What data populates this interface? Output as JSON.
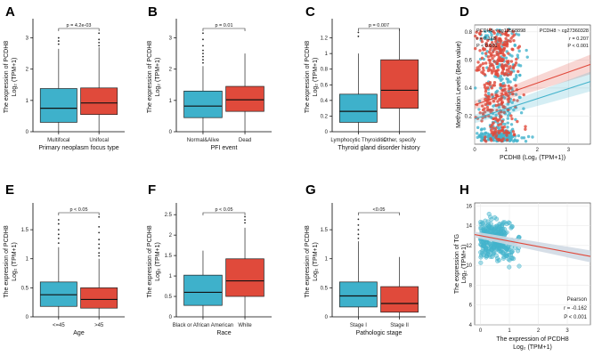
{
  "colors": {
    "blue": "#42b3cc",
    "red": "#e0483a",
    "blue_fill": "#3eb1cb",
    "red_fill": "#e04a3b",
    "band": "#cfd8e3"
  },
  "chart_data": [
    {
      "id": "A",
      "type": "box",
      "categories": [
        "Multifocal",
        "Unifocal"
      ],
      "xlabel": "Primary neoplasm focus type",
      "ylabel": "The expression of PCDH8",
      "ylabel2": "Log₂ (TPM+1)",
      "ylim": [
        0,
        3.5
      ],
      "yticks": [
        0,
        1,
        2,
        3
      ],
      "annotation": "p = 4.2e-03",
      "boxes": [
        {
          "q1": 0.3,
          "median": 0.75,
          "q3": 1.38,
          "low": 0.0,
          "high": 2.65,
          "outliers": [
            2.8,
            2.9,
            3.0
          ]
        },
        {
          "q1": 0.55,
          "median": 0.92,
          "q3": 1.4,
          "low": 0.0,
          "high": 2.7,
          "outliers": [
            2.75,
            2.85,
            2.95,
            3.15
          ]
        }
      ]
    },
    {
      "id": "B",
      "type": "box",
      "categories": [
        "Normal&Alive",
        "Dead"
      ],
      "xlabel": "PFI event",
      "ylabel": "The expression of PCDH8",
      "ylabel2": "Log₂ (TPM+1)",
      "ylim": [
        0,
        3.5
      ],
      "yticks": [
        0,
        1,
        2,
        3
      ],
      "annotation": "p = 0.01",
      "boxes": [
        {
          "q1": 0.45,
          "median": 0.82,
          "q3": 1.3,
          "low": 0.0,
          "high": 2.1,
          "outliers": [
            2.2,
            2.3,
            2.4,
            2.5,
            2.6,
            2.75,
            2.95,
            3.15
          ]
        },
        {
          "q1": 0.65,
          "median": 1.02,
          "q3": 1.45,
          "low": 0.0,
          "high": 2.5,
          "outliers": []
        }
      ]
    },
    {
      "id": "C",
      "type": "box",
      "categories": [
        "Lymphocytic Thyroiditis",
        "Other, specify"
      ],
      "xlabel": "Thyroid gland disorder history",
      "ylabel": "The expression of PCDH8",
      "ylabel2": "Log₂ (TPM+1)",
      "ylim": [
        0,
        1.4
      ],
      "yticks": [
        0,
        0.2,
        0.4,
        0.6,
        0.8,
        1.0,
        1.2
      ],
      "annotation": "p = 0.007",
      "boxes": [
        {
          "q1": 0.12,
          "median": 0.26,
          "q3": 0.48,
          "low": 0.0,
          "high": 1.0,
          "outliers": [
            1.22,
            1.27
          ]
        },
        {
          "q1": 0.3,
          "median": 0.53,
          "q3": 0.92,
          "low": 0.0,
          "high": 1.32,
          "outliers": []
        }
      ]
    },
    {
      "id": "D",
      "type": "scatter",
      "xlabel": "PCDH8 (Log₂ (TPM+1))",
      "ylabel": "Methylation Levels (Beta value)",
      "xlim": [
        0,
        3.7
      ],
      "ylim": [
        0,
        0.85
      ],
      "xticks": [
        0,
        1,
        2,
        3
      ],
      "yticks": [
        0.2,
        0.4,
        0.6,
        0.8
      ],
      "series": [
        {
          "name": "PCDH8 ~ cg12568898",
          "stat_r": "r = 0.168",
          "stat_p": "P < 0.001",
          "fit": [
            0.28,
            0.078
          ]
        },
        {
          "name": "PCDH8 ~ cg27360328",
          "stat_r": "r = 0.207",
          "stat_p": "P < 0.001",
          "fit": [
            0.18,
            0.072
          ]
        }
      ]
    },
    {
      "id": "E",
      "type": "box",
      "categories": [
        "<=45",
        ">45"
      ],
      "xlabel": "Age",
      "ylabel": "The expression of PCDH8",
      "ylabel2": "Log₂ (TPM+1)",
      "ylim": [
        0,
        1.9
      ],
      "yticks": [
        0,
        0.5,
        1.0,
        1.5
      ],
      "annotation": "p < 0.05",
      "boxes": [
        {
          "q1": 0.18,
          "median": 0.38,
          "q3": 0.6,
          "low": 0.0,
          "high": 1.2,
          "outliers": [
            1.27,
            1.35,
            1.42,
            1.5,
            1.6,
            1.67
          ]
        },
        {
          "q1": 0.15,
          "median": 0.3,
          "q3": 0.5,
          "low": 0.0,
          "high": 1.0,
          "outliers": [
            1.05,
            1.1,
            1.18,
            1.25,
            1.33,
            1.45,
            1.55,
            1.72
          ]
        }
      ]
    },
    {
      "id": "F",
      "type": "box",
      "categories": [
        "Black or African American",
        "White"
      ],
      "xlabel": "Race",
      "ylabel": "The expression of PCDH8",
      "ylabel2": "Log₂ (TPM+1)",
      "ylim": [
        0,
        2.7
      ],
      "yticks": [
        0,
        0.5,
        1.0,
        1.5,
        2.0,
        2.5
      ],
      "annotation": "p < 0.05",
      "boxes": [
        {
          "q1": 0.28,
          "median": 0.6,
          "q3": 1.02,
          "low": 0.0,
          "high": 1.62,
          "outliers": []
        },
        {
          "q1": 0.5,
          "median": 0.88,
          "q3": 1.42,
          "low": 0.0,
          "high": 2.18,
          "outliers": [
            2.3,
            2.37,
            2.45
          ]
        }
      ]
    },
    {
      "id": "G",
      "type": "box",
      "categories": [
        "Stage I",
        "Stage II"
      ],
      "xlabel": "Pathologic stage",
      "ylabel": "The expression of PCDH8",
      "ylabel2": "Log₂ (TPM+1)",
      "ylim": [
        0,
        1.9
      ],
      "yticks": [
        0,
        0.5,
        1.0,
        1.5
      ],
      "annotation": "<0.05",
      "boxes": [
        {
          "q1": 0.17,
          "median": 0.36,
          "q3": 0.6,
          "low": 0.0,
          "high": 1.3,
          "outliers": [
            1.35,
            1.42,
            1.5,
            1.58,
            1.68
          ]
        },
        {
          "q1": 0.08,
          "median": 0.23,
          "q3": 0.52,
          "low": 0.0,
          "high": 1.03,
          "outliers": []
        }
      ]
    },
    {
      "id": "H",
      "type": "scatter",
      "xlabel": "The expression of PCDH8",
      "xlabel2": "Log₂ (TPM+1)",
      "ylabel": "The expression of TG",
      "ylabel2": "Log₂ (TPM+1)",
      "xlim": [
        -0.2,
        3.8
      ],
      "ylim": [
        4,
        16.3
      ],
      "xticks": [
        0,
        1,
        2,
        3
      ],
      "yticks": [
        4,
        6,
        8,
        10,
        12,
        14,
        16
      ],
      "fit": [
        13.0,
        -0.55
      ],
      "stats": [
        "Pearson",
        "r = -0.162",
        "P < 0.001"
      ]
    }
  ]
}
